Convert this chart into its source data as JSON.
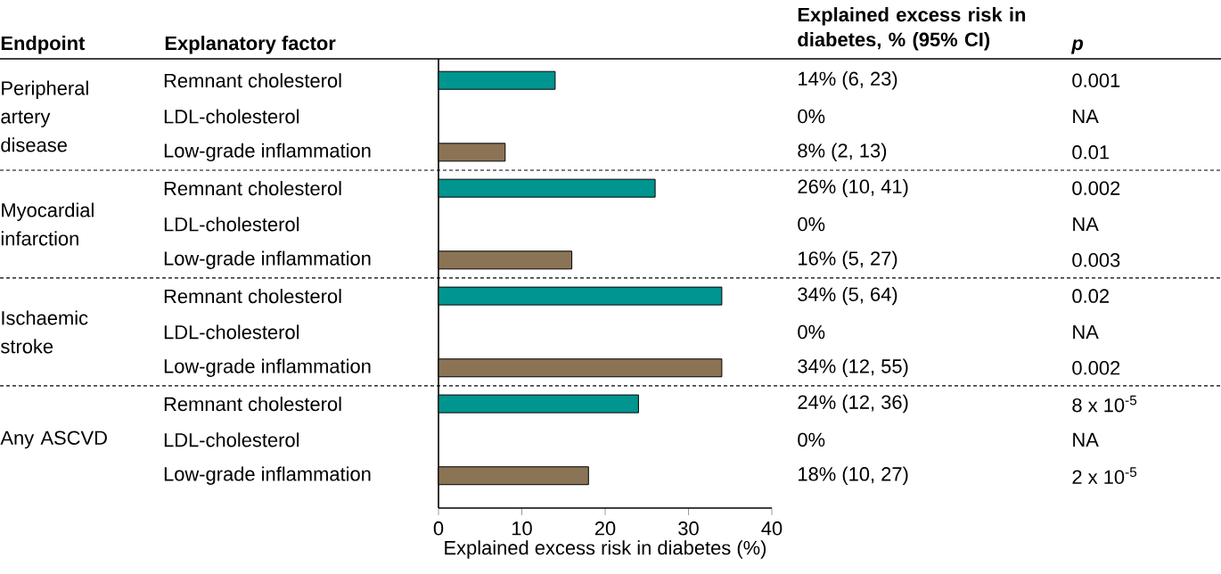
{
  "chart_data": {
    "type": "bar",
    "orientation": "horizontal",
    "xlabel": "Explained excess risk in diabetes (%)",
    "ylabel": "Explanatory factor",
    "categories": [
      "Remnant cholesterol",
      "LDL-cholesterol",
      "Low-grade inflammation",
      "Remnant cholesterol",
      "LDL-cholesterol",
      "Low-grade inflammation",
      "Remnant cholesterol",
      "LDL-cholesterol",
      "Low-grade inflammation",
      "Remnant cholesterol",
      "LDL-cholesterol",
      "Low-grade inflammation"
    ],
    "values": [
      14,
      0,
      8,
      26,
      0,
      16,
      34,
      0,
      34,
      24,
      0,
      18
    ],
    "colors": [
      "#00958f",
      null,
      "#8b7355",
      "#00958f",
      null,
      "#8b7355",
      "#00958f",
      null,
      "#8b7355",
      "#00958f",
      null,
      "#8b7355"
    ],
    "xlim": [
      0,
      40
    ],
    "xticks": [
      0,
      10,
      20,
      30,
      40
    ],
    "annotations": [
      "Endpoint",
      "Peripheral artery disease",
      "Myocardial infarction",
      "Ischaemic stroke",
      "Any ASCVD",
      "Explained excess risk in diabetes, % (95% CI)",
      "p",
      "14% (6, 23)",
      "0%",
      "8% (2, 13)",
      "26% (10, 41)",
      "0%",
      "16% (5, 27)",
      "34% (5, 64)",
      "0%",
      "34% (12, 55)",
      "24% (12, 36)",
      "0%",
      "18% (10, 27)",
      "0.001",
      "NA",
      "0.01",
      "0.002",
      "NA",
      "0.003",
      "0.02",
      "NA",
      "0.002",
      "8 x 10$^{-5}$",
      "NA",
      "2 x 10$^{-5}$"
    ]
  }
}
